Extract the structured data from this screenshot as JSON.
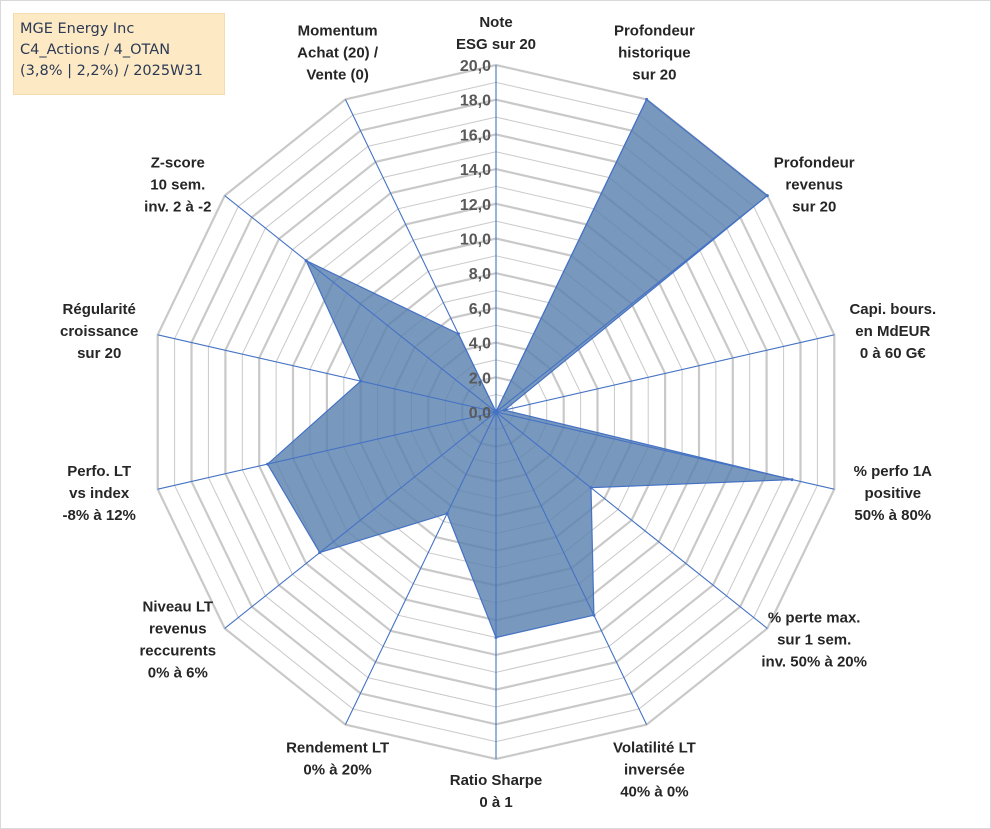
{
  "title": {
    "lines": [
      "MGE Energy Inc",
      "C4_Actions / 4_OTAN",
      "(3,8% | 2,2%) / 2025W31"
    ]
  },
  "colors": {
    "fill": "#5b81b0",
    "stroke": "#4472c4",
    "grid": "#c9c9c9",
    "background": "#ffffff",
    "title_bg": "#fde9c4"
  },
  "chart_data": {
    "type": "radar",
    "rlim": [
      0,
      20
    ],
    "grid": true,
    "ticks": [
      "0,0",
      "2,0",
      "4,0",
      "6,0",
      "8,0",
      "10,0",
      "12,0",
      "14,0",
      "16,0",
      "18,0",
      "20,0"
    ],
    "axes": [
      {
        "label": [
          "Note",
          "ESG sur 20"
        ],
        "value": 0
      },
      {
        "label": [
          "Profondeur",
          "historique",
          "sur 20"
        ],
        "value": 20
      },
      {
        "label": [
          "Profondeur",
          "revenus",
          "sur 20"
        ],
        "value": 20
      },
      {
        "label": [
          "Capi. bours.",
          "en MdEUR",
          "0 à 60 G€"
        ],
        "value": 0.5
      },
      {
        "label": [
          "% perfo 1A",
          "positive",
          "50% à 80%"
        ],
        "value": 17.5
      },
      {
        "label": [
          "% perte max.",
          "sur 1 sem.",
          "inv. 50% à 20%"
        ],
        "value": 7
      },
      {
        "label": [
          "Volatilité LT",
          "inversée",
          "40% à 0%"
        ],
        "value": 13
      },
      {
        "label": [
          "Ratio Sharpe",
          "0 à 1"
        ],
        "value": 13
      },
      {
        "label": [
          "Rendement LT",
          "0% à 20%"
        ],
        "value": 6.5
      },
      {
        "label": [
          "Niveau LT",
          "revenus",
          "reccurents",
          "0% à 6%"
        ],
        "value": 13
      },
      {
        "label": [
          "Perfo. LT",
          "vs index",
          "-8% à 12%"
        ],
        "value": 13.5
      },
      {
        "label": [
          "Régularité",
          "croissance",
          "sur 20"
        ],
        "value": 8
      },
      {
        "label": [
          "Z-score",
          "10 sem.",
          "inv. 2 à -2"
        ],
        "value": 14
      },
      {
        "label": [
          "Momentum",
          "Achat (20) /",
          "Vente (0)"
        ],
        "value": 5
      }
    ]
  }
}
